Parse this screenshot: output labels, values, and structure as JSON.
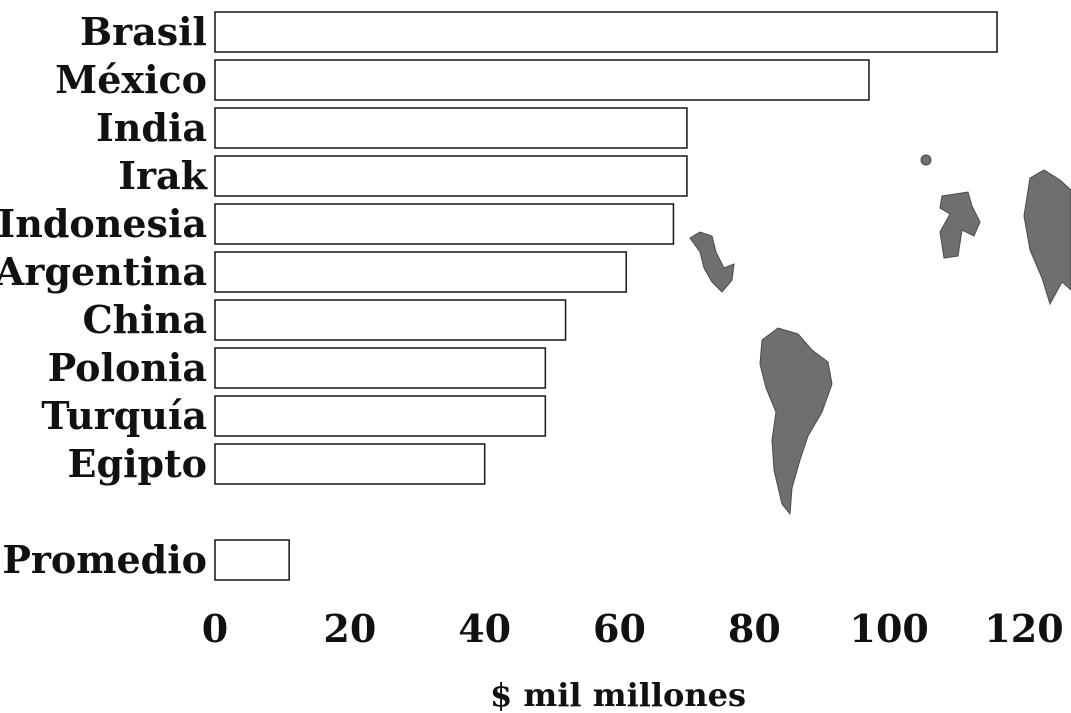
{
  "chart_data": {
    "type": "bar",
    "orientation": "horizontal",
    "categories": [
      "Brasil",
      "México",
      "India",
      "Irak",
      "Indonesia",
      "Argentina",
      "China",
      "Polonia",
      "Turquía",
      "Egipto",
      "Promedio"
    ],
    "values": [
      116,
      97,
      70,
      70,
      68,
      61,
      52,
      49,
      49,
      40,
      11
    ],
    "x_ticks": [
      "0",
      "20",
      "40",
      "60",
      "80",
      "100",
      "120"
    ],
    "xlim": [
      0,
      120
    ],
    "xlabel": "$ mil millones",
    "grid": false,
    "decoration": "world-map-silhouette"
  }
}
